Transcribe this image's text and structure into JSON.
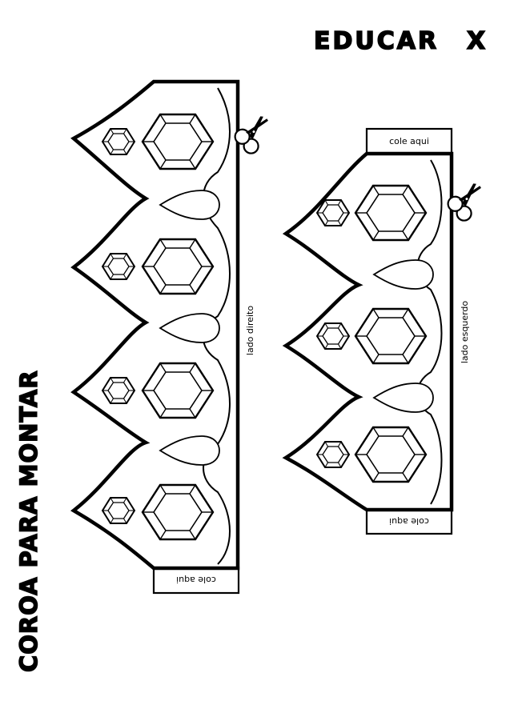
{
  "logo": {
    "text": "EDUCAR",
    "mark": "X"
  },
  "title": "COROA PARA MONTAR",
  "crowns": [
    {
      "side_label": "lado direito",
      "tab_label": "cole aqui"
    },
    {
      "side_label": "lado esquerdo",
      "top_tab_label": "cole aqui",
      "bottom_tab_label": "cole aqui"
    }
  ],
  "icons": {
    "scissors_1": "scissors-icon",
    "scissors_2": "scissors-icon"
  }
}
